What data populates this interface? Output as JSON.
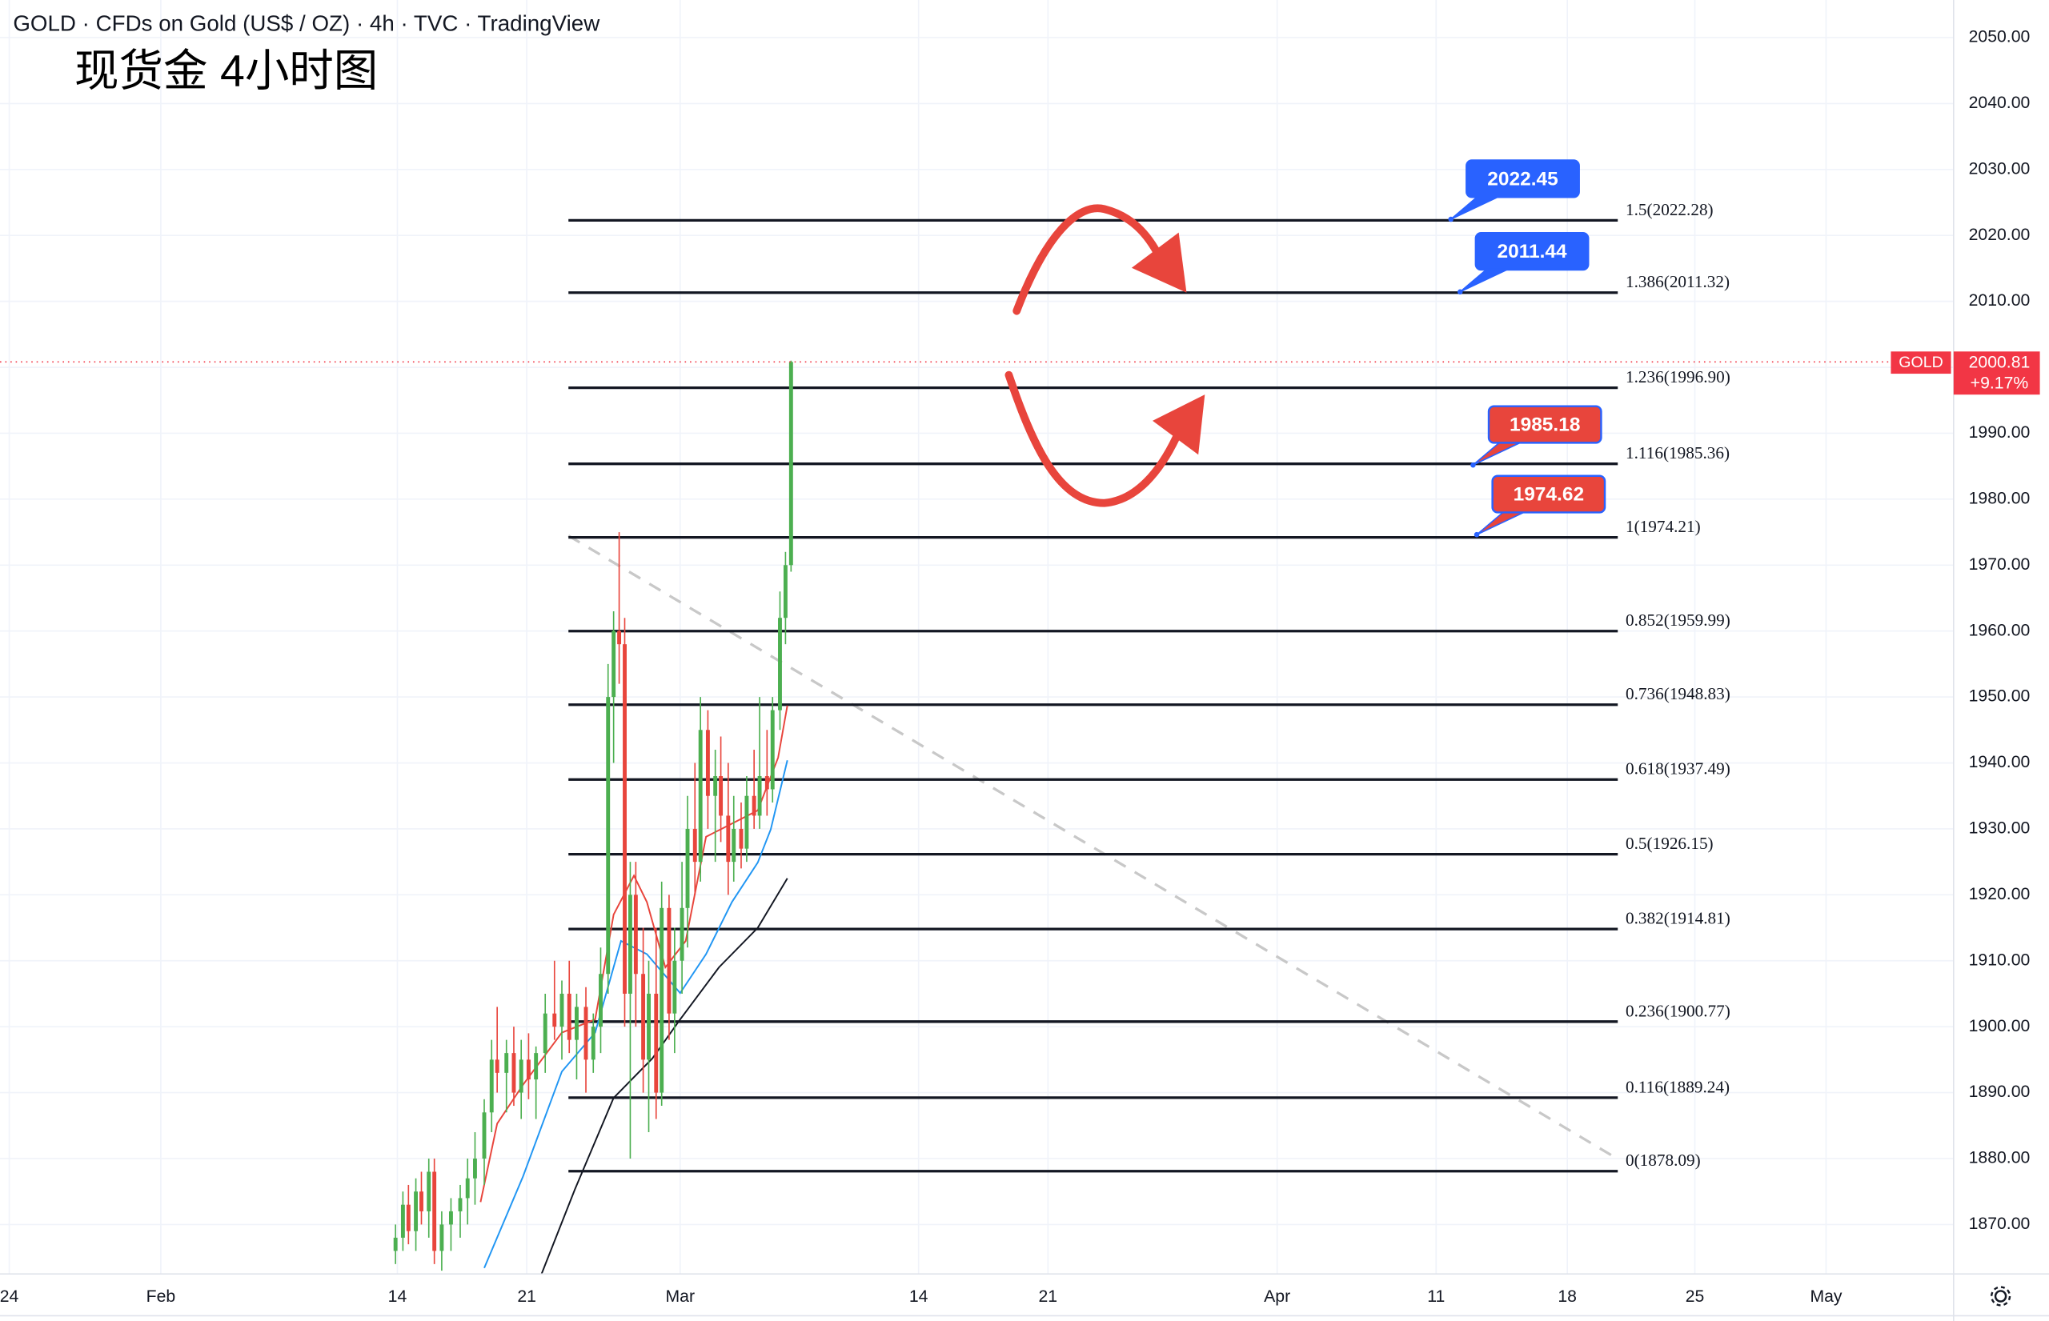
{
  "chart_data": {
    "type": "candlestick",
    "header": "GOLD · CFDs on Gold (US$ / OZ) · 4h · TVC · TradingView",
    "title": "现货金 4小时图",
    "xlim": [
      -0.5,
      105.2
    ],
    "ylim": [
      1862.5,
      2055.7
    ],
    "grid": true,
    "xticks": [
      {
        "value": 0,
        "label": "24"
      },
      {
        "value": 8.2,
        "label": "Feb"
      },
      {
        "value": 21,
        "label": "14"
      },
      {
        "value": 28,
        "label": "21"
      },
      {
        "value": 36.3,
        "label": "Mar"
      },
      {
        "value": 49.2,
        "label": "14"
      },
      {
        "value": 56.2,
        "label": "21"
      },
      {
        "value": 68.6,
        "label": "Apr"
      },
      {
        "value": 77.2,
        "label": "11"
      },
      {
        "value": 84.3,
        "label": "18"
      },
      {
        "value": 91.2,
        "label": "25"
      },
      {
        "value": 98.3,
        "label": "May"
      }
    ],
    "yticks": [
      {
        "value": 1870,
        "label": "1870.00"
      },
      {
        "value": 1880,
        "label": "1880.00"
      },
      {
        "value": 1890,
        "label": "1890.00"
      },
      {
        "value": 1900,
        "label": "1900.00"
      },
      {
        "value": 1910,
        "label": "1910.00"
      },
      {
        "value": 1920,
        "label": "1920.00"
      },
      {
        "value": 1930,
        "label": "1930.00"
      },
      {
        "value": 1940,
        "label": "1940.00"
      },
      {
        "value": 1950,
        "label": "1950.00"
      },
      {
        "value": 1960,
        "label": "1960.00"
      },
      {
        "value": 1970,
        "label": "1970.00"
      },
      {
        "value": 1980,
        "label": "1980.00"
      },
      {
        "value": 1990,
        "label": "1990.00"
      },
      {
        "value": 2000,
        "label": "2000.00"
      },
      {
        "value": 2010,
        "label": "2010.00"
      },
      {
        "value": 2020,
        "label": "2020.00"
      },
      {
        "value": 2030,
        "label": "2030.00"
      },
      {
        "value": 2040,
        "label": "2040.00"
      },
      {
        "value": 2050,
        "label": "2050.00"
      }
    ],
    "up_color": "#4caf50",
    "down_color": "#e8453c",
    "x": [
      20.9,
      21.3,
      21.6,
      22.0,
      22.3,
      22.7,
      23.0,
      23.4,
      23.9,
      24.4,
      24.8,
      25.2,
      25.7,
      26.1,
      26.4,
      26.9,
      27.3,
      27.7,
      28.1,
      28.5,
      29.0,
      29.5,
      29.9,
      30.3,
      30.7,
      31.2,
      31.6,
      32.0,
      32.4,
      32.7,
      33.0,
      33.3,
      33.6,
      33.9,
      34.3,
      34.6,
      35.0,
      35.3,
      35.7,
      36.0,
      36.4,
      36.7,
      37.1,
      37.4,
      37.8,
      38.2,
      38.5,
      38.9,
      39.2,
      39.6,
      39.9,
      40.3,
      40.6,
      41.0,
      41.3,
      41.7,
      42.0,
      42.3
    ],
    "open": [
      1866,
      1868,
      1873,
      1869,
      1875,
      1872,
      1878,
      1866,
      1870,
      1872,
      1874,
      1877,
      1880,
      1887,
      1895,
      1893,
      1896,
      1890,
      1895,
      1892,
      1896,
      1902,
      1900,
      1905,
      1898,
      1903,
      1895,
      1900,
      1908,
      1950,
      1960,
      1958,
      1905,
      1920,
      1908,
      1895,
      1905,
      1890,
      1918,
      1902,
      1910,
      1918,
      1930,
      1925,
      1945,
      1935,
      1938,
      1932,
      1925,
      1930,
      1927,
      1935,
      1932,
      1938,
      1936,
      1948,
      1962,
      1970
    ],
    "high": [
      1870,
      1875,
      1876,
      1877,
      1878,
      1880,
      1880,
      1872,
      1874,
      1876,
      1880,
      1884,
      1889,
      1898,
      1903,
      1898,
      1900,
      1898,
      1899,
      1897,
      1905,
      1910,
      1907,
      1910,
      1905,
      1906,
      1902,
      1912,
      1955,
      1963,
      1975,
      1962,
      1925,
      1925,
      1915,
      1910,
      1915,
      1922,
      1920,
      1915,
      1925,
      1935,
      1940,
      1950,
      1948,
      1942,
      1944,
      1940,
      1935,
      1934,
      1938,
      1942,
      1950,
      1945,
      1950,
      1966,
      1972,
      2001
    ],
    "low": [
      1864,
      1866,
      1867,
      1866,
      1870,
      1868,
      1864,
      1863,
      1866,
      1868,
      1870,
      1873,
      1876,
      1884,
      1890,
      1887,
      1888,
      1886,
      1889,
      1886,
      1893,
      1898,
      1895,
      1896,
      1892,
      1890,
      1893,
      1896,
      1905,
      1940,
      1952,
      1900,
      1880,
      1900,
      1890,
      1884,
      1886,
      1888,
      1898,
      1896,
      1905,
      1912,
      1920,
      1922,
      1930,
      1925,
      1928,
      1920,
      1922,
      1924,
      1925,
      1930,
      1930,
      1932,
      1934,
      1945,
      1958,
      1969
    ],
    "close": [
      1868,
      1873,
      1869,
      1875,
      1872,
      1878,
      1866,
      1870,
      1872,
      1874,
      1877,
      1880,
      1887,
      1895,
      1893,
      1896,
      1890,
      1895,
      1892,
      1896,
      1902,
      1900,
      1905,
      1898,
      1903,
      1895,
      1900,
      1908,
      1950,
      1960,
      1958,
      1905,
      1920,
      1908,
      1895,
      1905,
      1890,
      1918,
      1902,
      1910,
      1918,
      1930,
      1925,
      1945,
      1935,
      1938,
      1932,
      1925,
      1930,
      1927,
      1935,
      1932,
      1938,
      1936,
      1948,
      1962,
      1970,
      2000.81
    ],
    "series": [
      {
        "color": "#e8453c",
        "x": [
          25.5,
          26.4,
          27.8,
          29.9,
          31.7,
          32.7,
          33.8,
          34.5,
          35.5,
          36.6,
          37.7,
          39.1,
          40.5,
          41.6,
          42.1
        ],
        "values": [
          1873.4,
          1885.3,
          1891.2,
          1899.1,
          1901.1,
          1917.0,
          1922.9,
          1918.9,
          1909.0,
          1913.0,
          1928.8,
          1930.8,
          1932.8,
          1940.8,
          1948.7
        ]
      },
      {
        "color": "#2196f3",
        "x": [
          25.7,
          27.8,
          29.9,
          31.7,
          33.1,
          34.5,
          36.3,
          37.7,
          39.1,
          40.5,
          41.2,
          42.1
        ],
        "values": [
          1863.4,
          1877.3,
          1893.2,
          1899.1,
          1913.0,
          1911.0,
          1905.1,
          1911.0,
          1918.9,
          1924.9,
          1929.9,
          1940.4
        ]
      },
      {
        "color": "#131722",
        "x": [
          28.8,
          30.6,
          32.7,
          34.8,
          36.3,
          38.4,
          40.5,
          42.1
        ],
        "values": [
          1862.5,
          1875.3,
          1889.2,
          1895.2,
          1901.1,
          1909.0,
          1915.0,
          1922.5
        ]
      }
    ],
    "fib_levels": [
      {
        "value": 2022.28,
        "label": "1.5(2022.28)"
      },
      {
        "value": 2011.32,
        "label": "1.386(2011.32)"
      },
      {
        "value": 1996.9,
        "label": "1.236(1996.90)"
      },
      {
        "value": 1985.36,
        "label": "1.116(1985.36)"
      },
      {
        "value": 1974.21,
        "label": "1(1974.21)"
      },
      {
        "value": 1959.99,
        "label": "0.852(1959.99)"
      },
      {
        "value": 1948.83,
        "label": "0.736(1948.83)"
      },
      {
        "value": 1937.49,
        "label": "0.618(1937.49)"
      },
      {
        "value": 1926.15,
        "label": "0.5(1926.15)"
      },
      {
        "value": 1914.81,
        "label": "0.382(1914.81)"
      },
      {
        "value": 1900.77,
        "label": "0.236(1900.77)"
      },
      {
        "value": 1889.24,
        "label": "0.116(1889.24)"
      },
      {
        "value": 1878.09,
        "label": "0(1878.09)"
      }
    ],
    "annotations": [
      {
        "value": 2022.45,
        "x": 78.0,
        "color": "#2962ff"
      },
      {
        "value": 2011.44,
        "x": 78.5,
        "color": "#2962ff"
      },
      {
        "value": 1985.18,
        "x": 79.2,
        "color": "#e8453c"
      },
      {
        "value": 1974.62,
        "x": 79.4,
        "color": "#e8453c"
      }
    ],
    "last_price": {
      "symbol": "GOLD",
      "value": 2000.81,
      "change": "+9.17%",
      "color": "#f23645"
    }
  }
}
